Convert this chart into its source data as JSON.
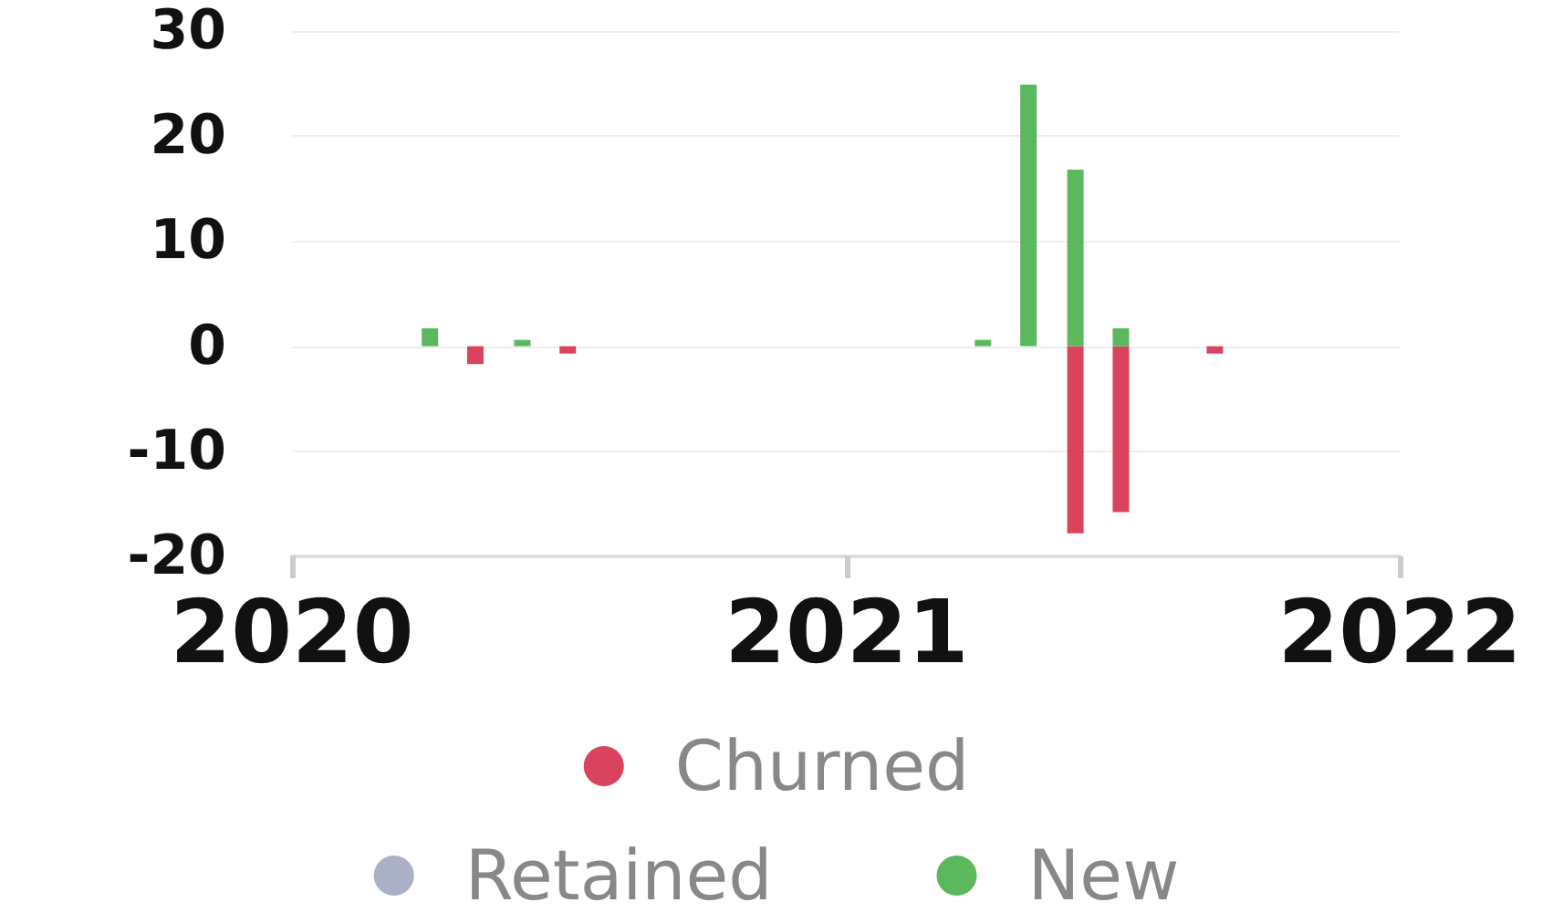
{
  "chart_data": {
    "type": "bar",
    "series": [
      {
        "name": "Churned",
        "color": "#d9435e",
        "x": [
          "2020-05",
          "2020-07",
          "2021-06",
          "2021-07",
          "2021-09"
        ],
        "values": [
          -1.7,
          -0.7,
          -17.8,
          -15.8,
          -0.7
        ]
      },
      {
        "name": "Retained",
        "color": "#aab0c6"
      },
      {
        "name": "New",
        "color": "#5cb85c",
        "x": [
          "2020-04",
          "2020-06",
          "2021-04",
          "2021-05",
          "2021-06",
          "2021-07"
        ],
        "values": [
          1.7,
          0.6,
          0.6,
          24.9,
          16.8,
          1.7
        ]
      }
    ],
    "xlim": [
      "2020-01",
      "2022-01"
    ],
    "xticks": [
      "2020",
      "2021",
      "2022"
    ],
    "ylim": [
      -20,
      30
    ],
    "yticks": [
      -20,
      -10,
      0,
      10,
      20,
      30
    ],
    "grid": "y",
    "legend": "bottom"
  }
}
